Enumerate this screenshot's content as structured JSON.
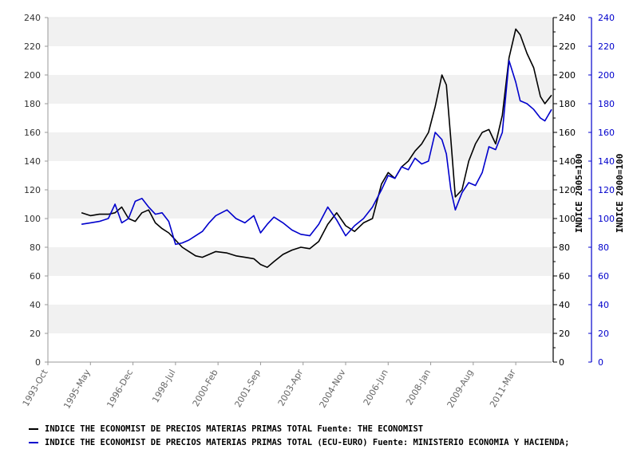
{
  "chart_data": {
    "type": "line",
    "x_tick_labels": [
      "1993-Oct",
      "1995-May",
      "1996-Dec",
      "1998-Jul",
      "2000-Feb",
      "2001-Sep",
      "2003-Apr",
      "2004-Nov",
      "2006-Jun",
      "2008-Jan",
      "2009-Aug",
      "2011-Mar"
    ],
    "x_range": [
      "1993-Oct",
      "2012-Jul"
    ],
    "grid": "horizontal alternating bands",
    "axes": [
      {
        "title": "INDICE 2005=100",
        "side": "right",
        "color": "#000000",
        "ylim": [
          0,
          240
        ],
        "ticks": [
          "0",
          "20",
          "40",
          "60",
          "80",
          "100",
          "120",
          "140",
          "160",
          "180",
          "200",
          "220",
          "240"
        ]
      },
      {
        "title": "INDICE 2000=100",
        "side": "right-outer",
        "color": "#0000cc",
        "ylim": [
          0,
          240
        ],
        "ticks": [
          "0",
          "20",
          "40",
          "60",
          "80",
          "100",
          "120",
          "140",
          "160",
          "180",
          "200",
          "220",
          "240"
        ]
      }
    ],
    "left_ticks": [
      "0",
      "20",
      "40",
      "60",
      "80",
      "100",
      "120",
      "140",
      "160",
      "180",
      "200",
      "220",
      "240"
    ],
    "series": [
      {
        "name": "INDICE THE ECONOMIST DE PRECIOS MATERIAS PRIMAS TOTAL  Fuente: THE ECONOMIST",
        "color": "#000000",
        "x": [
          "1995-Jan",
          "1995-May",
          "1995-Sep",
          "1996-Jan",
          "1996-Apr",
          "1996-Jul",
          "1996-Oct",
          "1997-Jan",
          "1997-Apr",
          "1997-Jul",
          "1997-Oct",
          "1998-Jan",
          "1998-Apr",
          "1998-Jul",
          "1998-Oct",
          "1999-Jan",
          "1999-Apr",
          "1999-Jul",
          "1999-Oct",
          "2000-Jan",
          "2000-Jun",
          "2000-Oct",
          "2001-Feb",
          "2001-Jun",
          "2001-Sep",
          "2001-Dec",
          "2002-Mar",
          "2002-Jul",
          "2002-Nov",
          "2003-Mar",
          "2003-Jul",
          "2003-Nov",
          "2004-Mar",
          "2004-Jul",
          "2004-Nov",
          "2005-Mar",
          "2005-Jul",
          "2005-Nov",
          "2006-Mar",
          "2006-Jun",
          "2006-Sep",
          "2006-Dec",
          "2007-Mar",
          "2007-Jun",
          "2007-Sep",
          "2007-Dec",
          "2008-Mar",
          "2008-Jun",
          "2008-Aug",
          "2008-Oct",
          "2008-Dec",
          "2009-Mar",
          "2009-Jun",
          "2009-Sep",
          "2009-Dec",
          "2010-Mar",
          "2010-Jun",
          "2010-Sep",
          "2010-Dec",
          "2011-Mar",
          "2011-May",
          "2011-Aug",
          "2011-Nov",
          "2012-Feb",
          "2012-Apr",
          "2012-Jul"
        ],
        "values": [
          104,
          102,
          103,
          103,
          104,
          108,
          100,
          98,
          104,
          106,
          97,
          93,
          90,
          85,
          80,
          77,
          74,
          73,
          75,
          77,
          76,
          74,
          73,
          72,
          68,
          66,
          70,
          75,
          78,
          80,
          79,
          84,
          96,
          104,
          95,
          91,
          97,
          100,
          124,
          132,
          128,
          136,
          140,
          147,
          152,
          160,
          178,
          200,
          193,
          155,
          115,
          120,
          140,
          152,
          160,
          162,
          152,
          172,
          212,
          232,
          228,
          215,
          205,
          185,
          180,
          186
        ],
        "note": "values approximate, read from plot"
      },
      {
        "name": "INDICE THE ECONOMIST DE PRECIOS MATERIAS PRIMAS TOTAL (ECU-EURO)  Fuente: MINISTERIO ECONOMIA Y HACIENDA;",
        "color": "#0000cc",
        "x": [
          "1995-Jan",
          "1995-May",
          "1995-Sep",
          "1996-Jan",
          "1996-Apr",
          "1996-Jul",
          "1996-Oct",
          "1997-Jan",
          "1997-Apr",
          "1997-Jul",
          "1997-Oct",
          "1998-Jan",
          "1998-Apr",
          "1998-Jul",
          "1998-Oct",
          "1999-Jan",
          "1999-Apr",
          "1999-Jul",
          "1999-Oct",
          "2000-Jan",
          "2000-Jun",
          "2000-Oct",
          "2001-Feb",
          "2001-Jun",
          "2001-Sep",
          "2001-Dec",
          "2002-Mar",
          "2002-Jul",
          "2002-Nov",
          "2003-Mar",
          "2003-Jul",
          "2003-Nov",
          "2004-Mar",
          "2004-Jul",
          "2004-Nov",
          "2005-Mar",
          "2005-Jul",
          "2005-Nov",
          "2006-Mar",
          "2006-Jun",
          "2006-Sep",
          "2006-Dec",
          "2007-Mar",
          "2007-Jun",
          "2007-Sep",
          "2007-Dec",
          "2008-Mar",
          "2008-Jun",
          "2008-Aug",
          "2008-Oct",
          "2008-Dec",
          "2009-Mar",
          "2009-Jun",
          "2009-Sep",
          "2009-Dec",
          "2010-Mar",
          "2010-Jun",
          "2010-Sep",
          "2010-Dec",
          "2011-Mar",
          "2011-May",
          "2011-Aug",
          "2011-Nov",
          "2012-Feb",
          "2012-Apr",
          "2012-Jul"
        ],
        "values": [
          96,
          97,
          98,
          100,
          110,
          97,
          100,
          112,
          114,
          108,
          103,
          104,
          98,
          82,
          83,
          85,
          88,
          91,
          97,
          102,
          106,
          100,
          97,
          102,
          90,
          96,
          101,
          97,
          92,
          89,
          88,
          96,
          108,
          99,
          88,
          95,
          100,
          108,
          120,
          130,
          128,
          136,
          134,
          142,
          138,
          140,
          160,
          155,
          145,
          120,
          106,
          118,
          125,
          123,
          132,
          150,
          148,
          160,
          210,
          195,
          182,
          180,
          176,
          170,
          168,
          176
        ],
        "note": "values approximate, read from plot"
      }
    ]
  },
  "colors": {
    "series1": "#000000",
    "series2": "#0000cc",
    "band": "#f1f1f1",
    "grid": "#ffffff"
  },
  "legend": {
    "item1": "INDICE THE ECONOMIST DE PRECIOS MATERIAS PRIMAS TOTAL  Fuente: THE ECONOMIST",
    "item2": "INDICE THE ECONOMIST DE PRECIOS MATERIAS PRIMAS TOTAL (ECU-EURO)  Fuente: MINISTERIO ECONOMIA Y HACIENDA;"
  }
}
